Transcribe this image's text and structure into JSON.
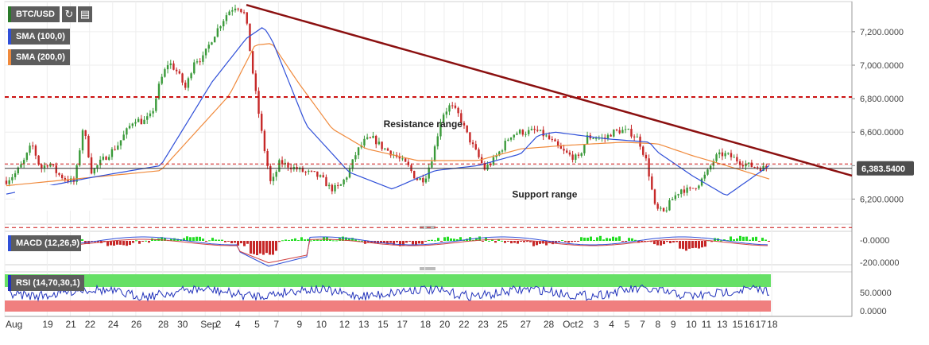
{
  "header": {
    "symbol": "BTC/USD",
    "sma100_label": "SMA (100,0)",
    "sma200_label": "SMA (200,0)",
    "macd_label": "MACD (12,26,9)",
    "rsi_label": "RSI (14,70,30,1)",
    "refresh_icon": "refresh-icon",
    "calendar_icon": "calendar-icon"
  },
  "colors": {
    "bull": "#3a9a3a",
    "bear": "#c62828",
    "sma100": "#2f4fd8",
    "sma200": "#f08a3c",
    "trendline": "#8b1010",
    "level": "#cc1111",
    "price_label_bg": "#4d4d4d",
    "rsi_over": "#66e066",
    "rsi_under": "#f07f7f",
    "rsi_line": "#2233bb"
  },
  "chart_data": {
    "type": "candlestick",
    "xlabel": "",
    "ylabel": "",
    "ylim": [
      6050,
      7380
    ],
    "y_ticks": [
      7200,
      7000,
      6800,
      6600,
      6400,
      6200
    ],
    "y_tick_labels": [
      "7,200.0000",
      "7,000.0000",
      "6,800.0000",
      "6,600.0000",
      "6,400.0000",
      "6,200.0000"
    ],
    "last_price_label": "6,383.5400",
    "last_price": 6383.54,
    "x_labels": [
      "Aug",
      "19",
      "21",
      "22",
      "24",
      "26",
      "28",
      "30",
      "Sep",
      "2",
      "4",
      "5",
      "7",
      "9",
      "10",
      "12",
      "13",
      "15",
      "17",
      "18",
      "20",
      "22",
      "23",
      "25",
      "27",
      "28",
      "Oct",
      "2",
      "3",
      "4",
      "5",
      "7",
      "8",
      "9",
      "10",
      "11",
      "13",
      "15",
      "16",
      "17",
      "18"
    ],
    "x_label_pos": [
      0,
      5.5,
      8.5,
      11,
      14,
      17,
      20.5,
      23,
      26,
      28,
      30.5,
      33,
      35.5,
      38.5,
      41,
      44,
      46.5,
      49,
      51.5,
      54.5,
      57,
      59.5,
      62,
      64.5,
      67.5,
      70.5,
      73,
      75,
      77,
      79,
      81,
      83,
      85,
      87,
      89,
      91,
      93,
      95,
      96.5,
      98,
      99.5
    ],
    "price_anchors": [
      [
        0,
        6310
      ],
      [
        1,
        6350
      ],
      [
        2,
        6420
      ],
      [
        3,
        6530
      ],
      [
        4,
        6380
      ],
      [
        5,
        6420
      ],
      [
        6,
        6350
      ],
      [
        7,
        6320
      ],
      [
        8,
        6300
      ],
      [
        9,
        6640
      ],
      [
        10,
        6360
      ],
      [
        11,
        6420
      ],
      [
        12,
        6470
      ],
      [
        13,
        6520
      ],
      [
        14,
        6600
      ],
      [
        15,
        6680
      ],
      [
        16,
        6660
      ],
      [
        17,
        6700
      ],
      [
        18,
        6900
      ],
      [
        19,
        7020
      ],
      [
        20,
        6960
      ],
      [
        21,
        6860
      ],
      [
        22,
        7030
      ],
      [
        23,
        7040
      ],
      [
        24,
        7150
      ],
      [
        25,
        7240
      ],
      [
        26,
        7320
      ],
      [
        27,
        7360
      ],
      [
        28,
        7300
      ],
      [
        29,
        6900
      ],
      [
        30,
        6560
      ],
      [
        31,
        6280
      ],
      [
        32,
        6420
      ],
      [
        33,
        6400
      ],
      [
        34,
        6380
      ],
      [
        35,
        6360
      ],
      [
        36,
        6350
      ],
      [
        37,
        6320
      ],
      [
        38,
        6260
      ],
      [
        39,
        6270
      ],
      [
        40,
        6350
      ],
      [
        41,
        6480
      ],
      [
        42,
        6550
      ],
      [
        43,
        6560
      ],
      [
        44,
        6510
      ],
      [
        45,
        6480
      ],
      [
        46,
        6440
      ],
      [
        47,
        6400
      ],
      [
        48,
        6320
      ],
      [
        49,
        6320
      ],
      [
        50,
        6470
      ],
      [
        51,
        6700
      ],
      [
        52,
        6760
      ],
      [
        53,
        6700
      ],
      [
        54,
        6580
      ],
      [
        55,
        6480
      ],
      [
        56,
        6380
      ],
      [
        57,
        6430
      ],
      [
        58,
        6500
      ],
      [
        59,
        6580
      ],
      [
        60,
        6600
      ],
      [
        61,
        6600
      ],
      [
        62,
        6610
      ],
      [
        63,
        6580
      ],
      [
        64,
        6540
      ],
      [
        65,
        6490
      ],
      [
        66,
        6460
      ],
      [
        67,
        6440
      ],
      [
        68,
        6570
      ],
      [
        69,
        6570
      ],
      [
        70,
        6560
      ],
      [
        71,
        6600
      ],
      [
        72,
        6610
      ],
      [
        73,
        6600
      ],
      [
        74,
        6560
      ],
      [
        75,
        6420
      ],
      [
        76,
        6140
      ],
      [
        77,
        6120
      ],
      [
        78,
        6200
      ],
      [
        79,
        6260
      ],
      [
        80,
        6250
      ],
      [
        81,
        6290
      ],
      [
        82,
        6350
      ],
      [
        83,
        6450
      ],
      [
        84,
        6470
      ],
      [
        85,
        6450
      ],
      [
        86,
        6420
      ],
      [
        87,
        6400
      ],
      [
        88,
        6390
      ],
      [
        89,
        6383.54
      ]
    ],
    "sma100_anchors": [
      [
        0,
        6230
      ],
      [
        10,
        6330
      ],
      [
        18,
        6400
      ],
      [
        24,
        6900
      ],
      [
        28,
        7160
      ],
      [
        30,
        7230
      ],
      [
        31,
        7150
      ],
      [
        35,
        6640
      ],
      [
        40,
        6360
      ],
      [
        45,
        6260
      ],
      [
        50,
        6370
      ],
      [
        55,
        6400
      ],
      [
        60,
        6470
      ],
      [
        62,
        6580
      ],
      [
        64,
        6600
      ],
      [
        70,
        6560
      ],
      [
        75,
        6540
      ],
      [
        76,
        6480
      ],
      [
        80,
        6340
      ],
      [
        84,
        6220
      ],
      [
        89,
        6400
      ]
    ],
    "sma200_anchors": [
      [
        0,
        6280
      ],
      [
        10,
        6330
      ],
      [
        18,
        6370
      ],
      [
        26,
        6820
      ],
      [
        29,
        7120
      ],
      [
        31,
        7130
      ],
      [
        34,
        6900
      ],
      [
        38,
        6620
      ],
      [
        42,
        6500
      ],
      [
        48,
        6430
      ],
      [
        55,
        6430
      ],
      [
        60,
        6500
      ],
      [
        65,
        6520
      ],
      [
        72,
        6540
      ],
      [
        76,
        6530
      ],
      [
        80,
        6460
      ],
      [
        84,
        6400
      ],
      [
        89,
        6320
      ]
    ],
    "trendline": {
      "start": [
        28,
        7360
      ],
      "end": [
        100,
        6340
      ]
    },
    "resistance_level": 6810,
    "current_level_dotted": 6410,
    "support_level": 6030,
    "annotations": [
      {
        "text": "Resistance range",
        "x": 44,
        "y": 6630
      },
      {
        "text": "Support range",
        "x": 59,
        "y": 6210
      }
    ],
    "macd": {
      "range_labels": [
        "-0.0000",
        "-200.0000"
      ],
      "ylim": [
        -260,
        80
      ]
    },
    "rsi": {
      "range_labels": [
        "50.0000",
        "0.0000"
      ],
      "ylim": [
        0,
        100
      ],
      "overbought": 70,
      "oversold": 30
    }
  }
}
